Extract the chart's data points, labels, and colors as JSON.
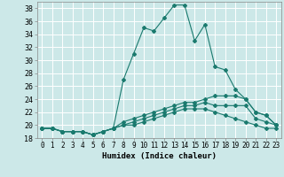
{
  "xlabel": "Humidex (Indice chaleur)",
  "xlim": [
    -0.5,
    23.5
  ],
  "ylim": [
    18,
    39
  ],
  "yticks": [
    18,
    20,
    22,
    24,
    26,
    28,
    30,
    32,
    34,
    36,
    38
  ],
  "xticks": [
    0,
    1,
    2,
    3,
    4,
    5,
    6,
    7,
    8,
    9,
    10,
    11,
    12,
    13,
    14,
    15,
    16,
    17,
    18,
    19,
    20,
    21,
    22,
    23
  ],
  "bg_color": "#cce8e8",
  "grid_color": "#aad4d4",
  "line_color": "#1a7a6e",
  "series": [
    {
      "x": [
        0,
        1,
        2,
        3,
        4,
        5,
        6,
        7,
        8,
        9,
        10,
        11,
        12,
        13,
        14,
        15,
        16,
        17,
        18,
        19,
        20,
        21,
        22,
        23
      ],
      "y": [
        19.5,
        19.5,
        19.0,
        19.0,
        19.0,
        18.5,
        19.0,
        19.5,
        27.0,
        31.0,
        35.0,
        34.5,
        36.5,
        38.5,
        38.5,
        33.0,
        35.5,
        29.0,
        28.5,
        25.5,
        24.0,
        22.0,
        21.5,
        20.0
      ]
    },
    {
      "x": [
        0,
        1,
        2,
        3,
        4,
        5,
        6,
        7,
        8,
        9,
        10,
        11,
        12,
        13,
        14,
        15,
        16,
        17,
        18,
        19,
        20,
        21,
        22,
        23
      ],
      "y": [
        19.5,
        19.5,
        19.0,
        19.0,
        19.0,
        18.5,
        19.0,
        19.5,
        20.5,
        21.0,
        21.5,
        22.0,
        22.5,
        23.0,
        23.5,
        23.5,
        24.0,
        24.5,
        24.5,
        24.5,
        24.0,
        22.0,
        21.5,
        20.0
      ]
    },
    {
      "x": [
        0,
        1,
        2,
        3,
        4,
        5,
        6,
        7,
        8,
        9,
        10,
        11,
        12,
        13,
        14,
        15,
        16,
        17,
        18,
        19,
        20,
        21,
        22,
        23
      ],
      "y": [
        19.5,
        19.5,
        19.0,
        19.0,
        19.0,
        18.5,
        19.0,
        19.5,
        20.0,
        20.5,
        21.0,
        21.5,
        22.0,
        22.5,
        23.0,
        23.0,
        23.5,
        23.0,
        23.0,
        23.0,
        23.0,
        21.0,
        20.5,
        20.0
      ]
    },
    {
      "x": [
        0,
        1,
        2,
        3,
        4,
        5,
        6,
        7,
        8,
        9,
        10,
        11,
        12,
        13,
        14,
        15,
        16,
        17,
        18,
        19,
        20,
        21,
        22,
        23
      ],
      "y": [
        19.5,
        19.5,
        19.0,
        19.0,
        19.0,
        18.5,
        19.0,
        19.5,
        20.0,
        20.0,
        20.5,
        21.0,
        21.5,
        22.0,
        22.5,
        22.5,
        22.5,
        22.0,
        21.5,
        21.0,
        20.5,
        20.0,
        19.5,
        19.5
      ]
    }
  ]
}
